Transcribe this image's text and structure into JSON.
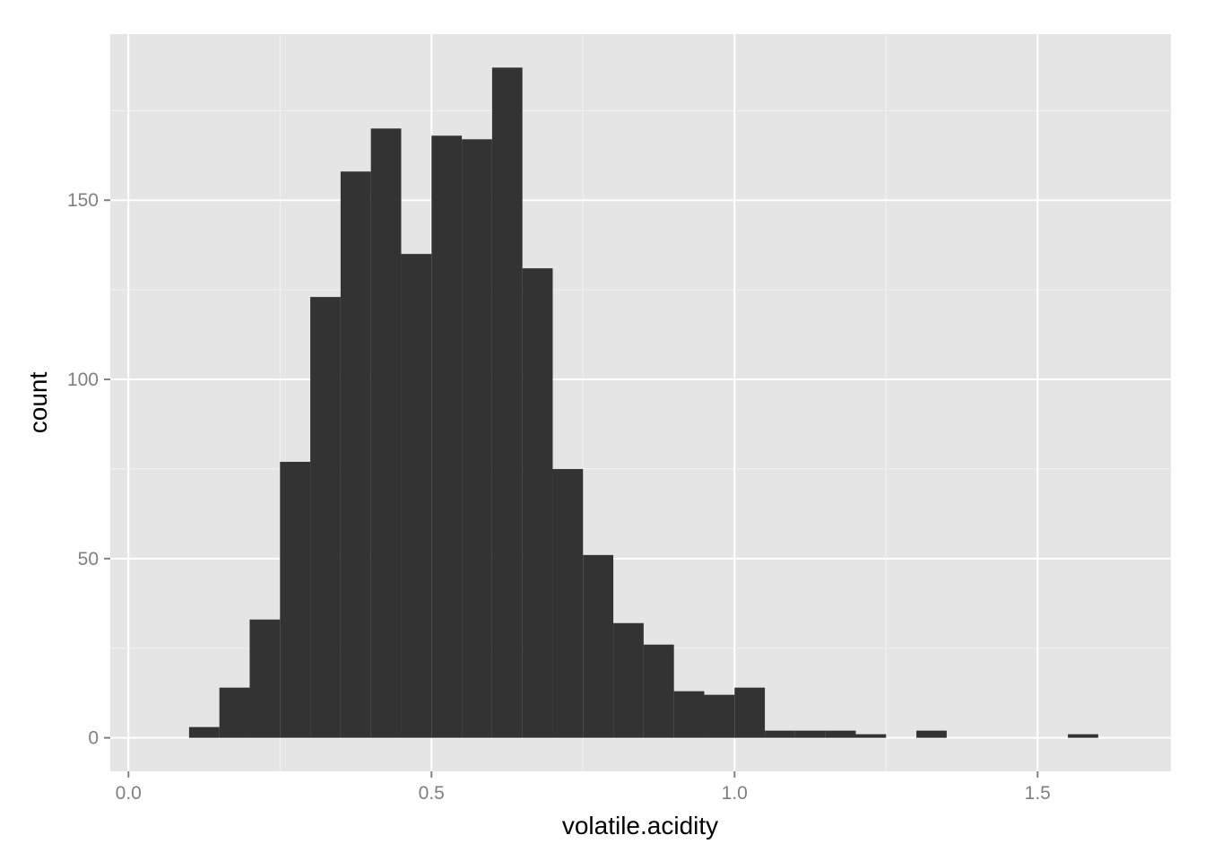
{
  "chart_data": {
    "type": "bar",
    "subtype": "histogram",
    "title": "",
    "xlabel": "volatile.acidity",
    "ylabel": "count",
    "xlim": [
      -0.03,
      1.72
    ],
    "ylim": [
      -9.35,
      196.35
    ],
    "x_ticks": [
      0.0,
      0.5,
      1.0,
      1.5
    ],
    "x_tick_labels": [
      "0.0",
      "0.5",
      "1.0",
      "1.5"
    ],
    "y_ticks": [
      0,
      50,
      100,
      150
    ],
    "y_tick_labels": [
      "0",
      "50",
      "100",
      "150"
    ],
    "bin_width": 0.05,
    "bins": [
      {
        "x0": 0.1,
        "x1": 0.15,
        "count": 3
      },
      {
        "x0": 0.15,
        "x1": 0.2,
        "count": 14
      },
      {
        "x0": 0.2,
        "x1": 0.25,
        "count": 33
      },
      {
        "x0": 0.25,
        "x1": 0.3,
        "count": 77
      },
      {
        "x0": 0.3,
        "x1": 0.35,
        "count": 123
      },
      {
        "x0": 0.35,
        "x1": 0.4,
        "count": 158
      },
      {
        "x0": 0.4,
        "x1": 0.45,
        "count": 170
      },
      {
        "x0": 0.45,
        "x1": 0.5,
        "count": 135
      },
      {
        "x0": 0.5,
        "x1": 0.55,
        "count": 168
      },
      {
        "x0": 0.55,
        "x1": 0.6,
        "count": 167
      },
      {
        "x0": 0.6,
        "x1": 0.65,
        "count": 187
      },
      {
        "x0": 0.65,
        "x1": 0.7,
        "count": 131
      },
      {
        "x0": 0.7,
        "x1": 0.75,
        "count": 75
      },
      {
        "x0": 0.75,
        "x1": 0.8,
        "count": 51
      },
      {
        "x0": 0.8,
        "x1": 0.85,
        "count": 32
      },
      {
        "x0": 0.85,
        "x1": 0.9,
        "count": 26
      },
      {
        "x0": 0.9,
        "x1": 0.95,
        "count": 13
      },
      {
        "x0": 0.95,
        "x1": 1.0,
        "count": 12
      },
      {
        "x0": 1.0,
        "x1": 1.05,
        "count": 14
      },
      {
        "x0": 1.05,
        "x1": 1.1,
        "count": 2
      },
      {
        "x0": 1.1,
        "x1": 1.15,
        "count": 2
      },
      {
        "x0": 1.15,
        "x1": 1.2,
        "count": 2
      },
      {
        "x0": 1.2,
        "x1": 1.25,
        "count": 1
      },
      {
        "x0": 1.25,
        "x1": 1.3,
        "count": 0
      },
      {
        "x0": 1.3,
        "x1": 1.35,
        "count": 2
      },
      {
        "x0": 1.35,
        "x1": 1.4,
        "count": 0
      },
      {
        "x0": 1.4,
        "x1": 1.45,
        "count": 0
      },
      {
        "x0": 1.45,
        "x1": 1.5,
        "count": 0
      },
      {
        "x0": 1.5,
        "x1": 1.55,
        "count": 0
      },
      {
        "x0": 1.55,
        "x1": 1.6,
        "count": 1
      }
    ],
    "grid": true,
    "colors": {
      "panel_background": "#e5e5e5",
      "grid_major": "#ffffff",
      "grid_minor": "#f2f2f2",
      "bar_fill": "#333333",
      "tick_text": "#808080",
      "tick_mark": "#808080",
      "axis_title": "#000000"
    }
  }
}
